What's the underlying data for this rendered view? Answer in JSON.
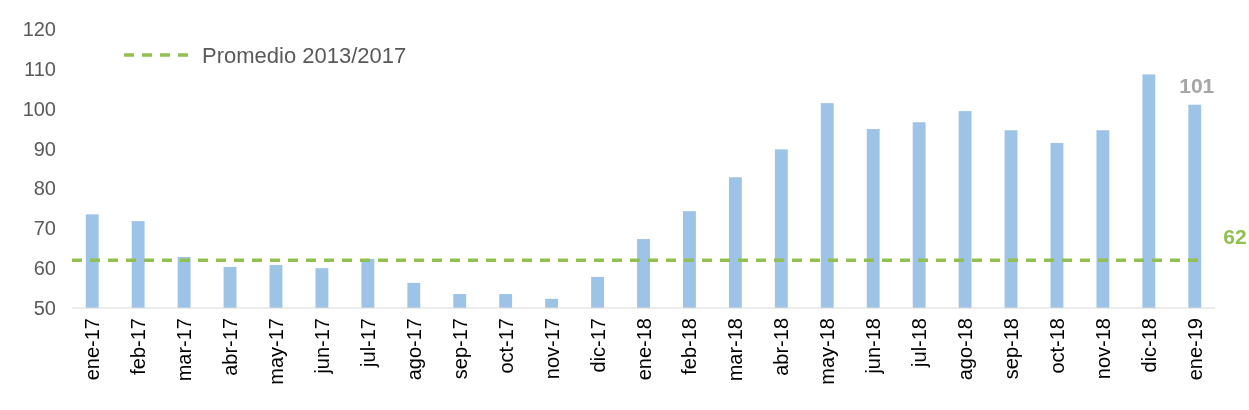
{
  "chart_data": {
    "type": "bar",
    "categories": [
      "ene-17",
      "feb-17",
      "mar-17",
      "abr-17",
      "may-17",
      "jun-17",
      "jul-17",
      "ago-17",
      "sep-17",
      "oct-17",
      "nov-17",
      "dic-17",
      "ene-18",
      "feb-18",
      "mar-18",
      "abr-18",
      "may-18",
      "jun-18",
      "jul-18",
      "ago-18",
      "sep-18",
      "oct-18",
      "nov-18",
      "dic-18",
      "ene-19"
    ],
    "values": [
      73.5,
      71.8,
      62.8,
      60.3,
      60.8,
      60,
      62.3,
      56.3,
      53.5,
      53.5,
      52.3,
      57.8,
      67.3,
      74.3,
      82.8,
      89.8,
      101.4,
      94.9,
      96.6,
      99.4,
      94.6,
      91.4,
      94.6,
      108.6,
      101
    ],
    "value_labels": [
      null,
      null,
      null,
      null,
      null,
      null,
      null,
      null,
      null,
      null,
      null,
      null,
      null,
      null,
      null,
      null,
      null,
      null,
      null,
      null,
      null,
      null,
      null,
      null,
      "101"
    ],
    "color": "#9dc3e6",
    "ylim": [
      50,
      120
    ],
    "yticks": [
      50,
      60,
      70,
      80,
      90,
      100,
      110,
      120
    ],
    "ref_lines": [
      {
        "axis": "y",
        "value": 62,
        "label": "Promedio 2013/2017",
        "color": "#92c050",
        "line_style": "dashed"
      }
    ],
    "annotations": [
      "62"
    ],
    "legend": "top left"
  }
}
